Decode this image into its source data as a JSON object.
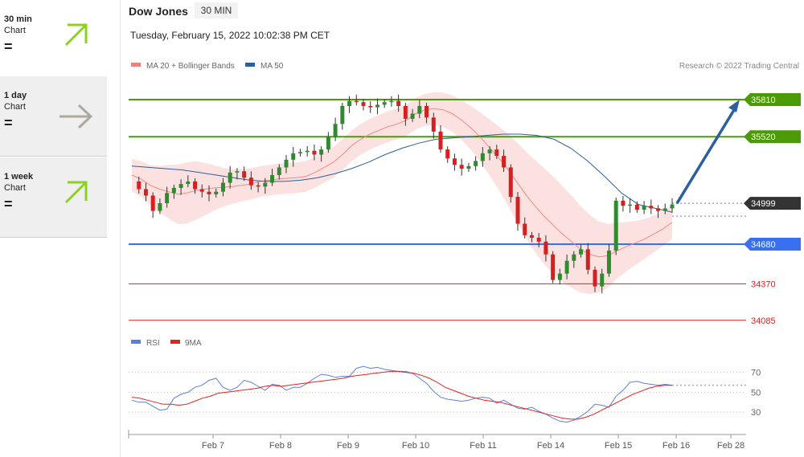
{
  "sidebar": {
    "items": [
      {
        "period": "30 min",
        "kind": "Chart",
        "signal": "=",
        "arrow": "up-right",
        "color": "#8cd11c",
        "active": false
      },
      {
        "period": "1 day",
        "kind": "Chart",
        "signal": "=",
        "arrow": "right",
        "color": "#b0a79e",
        "active": true
      },
      {
        "period": "1 week",
        "kind": "Chart",
        "signal": "=",
        "arrow": "up-right",
        "color": "#8cd11c",
        "active": true
      }
    ]
  },
  "header": {
    "instrument": "Dow Jones",
    "interval": "30 MIN",
    "datetime": "Tuesday, February 15, 2022 10:02:38 PM CET",
    "legend": [
      {
        "label": "MA 20 + Bollinger Bands",
        "color": "#f08080"
      },
      {
        "label": "MA 50",
        "color": "#2b5fa0"
      }
    ],
    "credit": "Research © 2022 Trading Central"
  },
  "rsi_legend": [
    {
      "label": "RSI",
      "color": "#5b7fdc"
    },
    {
      "label": "9MA",
      "color": "#e52222"
    }
  ],
  "chart_data": {
    "type": "candlestick",
    "x_ticks": [
      "Feb 7",
      "Feb 8",
      "Feb 9",
      "Feb 10",
      "Feb 11",
      "Feb 14",
      "Feb 15",
      "Feb 16",
      "Feb 28"
    ],
    "ylim": [
      33900,
      36050
    ],
    "last_price": 34999,
    "levels": [
      {
        "value": 35810,
        "label": "35810",
        "kind": "resistance",
        "color": "#4d9a07"
      },
      {
        "value": 35520,
        "label": "35520",
        "kind": "resistance",
        "color": "#4d9a07"
      },
      {
        "value": 34680,
        "label": "34680",
        "kind": "pivot",
        "color": "#3a6ff0"
      },
      {
        "value": 34370,
        "label": "34370",
        "kind": "support",
        "color": "#dd2222"
      },
      {
        "value": 34085,
        "label": "34085",
        "kind": "support",
        "color": "#dd2222"
      }
    ],
    "forecast_arrow": {
      "from": 34999,
      "to": 35810,
      "color": "#2b5fa0"
    },
    "price_path": [
      35170,
      35110,
      35060,
      34940,
      35000,
      35080,
      35120,
      35150,
      35170,
      35110,
      35090,
      35070,
      35090,
      35160,
      35240,
      35250,
      35200,
      35140,
      35130,
      35160,
      35220,
      35280,
      35340,
      35390,
      35400,
      35410,
      35380,
      35420,
      35520,
      35620,
      35760,
      35800,
      35790,
      35760,
      35750,
      35770,
      35790,
      35800,
      35760,
      35660,
      35700,
      35760,
      35670,
      35560,
      35420,
      35350,
      35300,
      35270,
      35290,
      35330,
      35390,
      35420,
      35370,
      35280,
      35050,
      34840,
      34750,
      34730,
      34700,
      34600,
      34400,
      34450,
      34550,
      34600,
      34640,
      34480,
      34350,
      34450,
      34630,
      35020,
      34980,
      34990,
      34950,
      34980,
      34960,
      34940,
      34960,
      34990
    ],
    "ma20": [
      35220,
      35190,
      35140,
      35110,
      35090,
      35070,
      35080,
      35100,
      35110,
      35120,
      35125,
      35130,
      35140,
      35150,
      35170,
      35180,
      35190,
      35195,
      35200,
      35210,
      35240,
      35280,
      35320,
      35380,
      35450,
      35500,
      35540,
      35570,
      35600,
      35620,
      35650,
      35700,
      35730,
      35740,
      35730,
      35700,
      35650,
      35590,
      35520,
      35440,
      35360,
      35270,
      35170,
      35070,
      34980,
      34900,
      34830,
      34760,
      34700,
      34640,
      34600,
      34580,
      34590,
      34630,
      34660,
      34690,
      34720,
      34760,
      34800,
      34850
    ],
    "ma50": [
      35290,
      35280,
      35270,
      35260,
      35240,
      35220,
      35200,
      35180,
      35170,
      35170,
      35180,
      35200,
      35230,
      35270,
      35320,
      35380,
      35430,
      35470,
      35500,
      35510,
      35520,
      35530,
      35540,
      35540,
      35530,
      35500,
      35430,
      35330,
      35210,
      35080,
      34990,
      34960,
      34930
    ],
    "rsi": [
      42,
      40,
      40,
      36,
      32,
      33,
      44,
      48,
      50,
      55,
      57,
      62,
      64,
      55,
      52,
      55,
      62,
      60,
      56,
      52,
      58,
      57,
      52,
      55,
      55,
      59,
      64,
      68,
      67,
      65,
      66,
      66,
      74,
      76,
      74,
      75,
      73,
      72,
      71,
      71,
      69,
      64,
      59,
      51,
      45,
      43,
      42,
      41,
      42,
      44,
      45,
      44,
      39,
      42,
      38,
      34,
      33,
      35,
      31,
      28,
      24,
      21,
      20,
      22,
      26,
      31,
      38,
      37,
      35,
      46,
      52,
      60,
      61,
      59,
      58,
      57,
      58,
      57
    ],
    "rsi_ma9": [
      45,
      44,
      42,
      40,
      38,
      38,
      37,
      38,
      41,
      44,
      46,
      49,
      50,
      51,
      52,
      53,
      54,
      56,
      57,
      56,
      57,
      58,
      59,
      60,
      61,
      62,
      63,
      64,
      66,
      67,
      68,
      69,
      70,
      71,
      71,
      70,
      69,
      67,
      64,
      60,
      55,
      52,
      49,
      46,
      44,
      42,
      41,
      40,
      38,
      36,
      34,
      32,
      30,
      28,
      26,
      24,
      23,
      23,
      25,
      28,
      32,
      36,
      40,
      44,
      48,
      51,
      54,
      56,
      57,
      57
    ],
    "rsi_ticks": [
      30,
      50,
      70
    ],
    "rsi_ylim": [
      10,
      85
    ]
  }
}
